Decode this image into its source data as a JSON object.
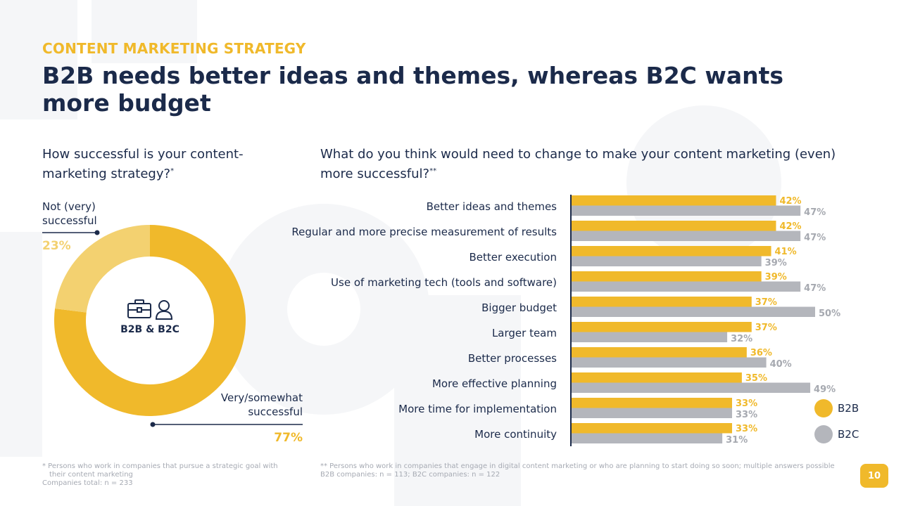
{
  "header": {
    "eyebrow": "CONTENT MARKETING STRATEGY",
    "title": "B2B needs better ideas and themes, whereas B2C wants more budget"
  },
  "left": {
    "question": "How successful is your content-marketing strategy?",
    "question_mark": "*",
    "center_label": "B2B & B2C",
    "center_icons": [
      "briefcase-icon",
      "person-icon"
    ],
    "segments": [
      {
        "label_line1": "Not (very)",
        "label_line2": "successful",
        "percent": "23%",
        "value": 23,
        "color": "#f3d170"
      },
      {
        "label_line1": "Very/somewhat",
        "label_line2": "successful",
        "percent": "77%",
        "value": 77,
        "color": "#f0b92b"
      }
    ]
  },
  "right": {
    "question": "What do you think would need to change to make your content marketing (even) more successful?",
    "question_mark": "**"
  },
  "chart_data": {
    "type": "bar",
    "orientation": "horizontal",
    "categories": [
      "Better ideas and themes",
      "Regular and more precise measurement of results",
      "Better execution",
      "Use of marketing tech (tools and software)",
      "Bigger budget",
      "Larger team",
      "Better processes",
      "More effective planning",
      "More time for implementation",
      "More continuity"
    ],
    "series": [
      {
        "name": "B2B",
        "color": "#f0b92b",
        "values": [
          42,
          42,
          41,
          39,
          37,
          37,
          36,
          35,
          33,
          33
        ]
      },
      {
        "name": "B2C",
        "color": "#b4b6bc",
        "values": [
          47,
          47,
          39,
          47,
          50,
          32,
          40,
          49,
          33,
          31
        ]
      }
    ],
    "value_suffix": "%",
    "xlim": [
      0,
      50
    ],
    "grid": false,
    "legend_position": "bottom-right"
  },
  "footnotes": {
    "left_line1": "* Persons who work in companies that pursue a strategic goal with",
    "left_line2": "their content marketing",
    "left_line3": "Companies total: n = 233",
    "right_line1": "** Persons who work in companies that engage in digital content marketing or who are planning to start doing so soon; multiple answers possible",
    "right_line2": "B2B companies: n = 113; B2C companies: n = 122"
  },
  "page_number": "10",
  "colors": {
    "navy": "#1b2a4a",
    "accent": "#f0b92b",
    "light_accent": "#f3d170",
    "grey": "#b4b6bc"
  }
}
